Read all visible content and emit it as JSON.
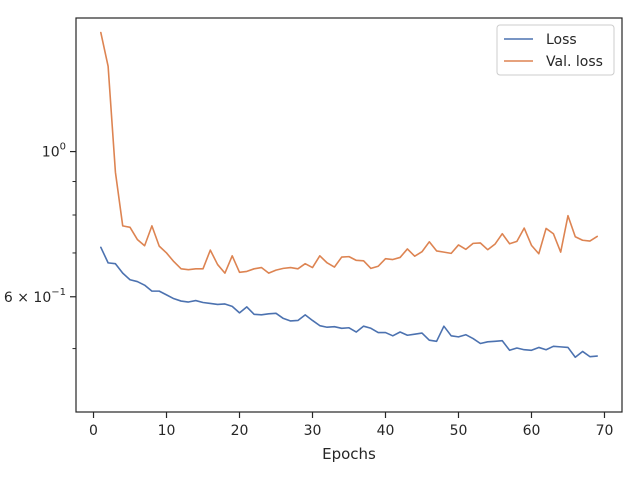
{
  "chart_data": {
    "type": "line",
    "title": "",
    "xlabel": "Epochs",
    "ylabel": "",
    "yscale": "log",
    "xlim": [
      -2.4,
      72.4
    ],
    "ylim": [
      0.4,
      1.6
    ],
    "xticks": [
      0,
      10,
      20,
      30,
      40,
      50,
      60,
      70
    ],
    "xtick_labels": [
      "0",
      "10",
      "20",
      "30",
      "40",
      "50",
      "60",
      "70"
    ],
    "yticks_major": [
      {
        "value": 1.0,
        "label": "10",
        "exp": "0"
      },
      {
        "value": 0.6,
        "label": "6 × 10",
        "exp": "−1"
      }
    ],
    "yticks_minor": [
      0.5,
      0.7,
      0.8,
      0.9
    ],
    "grid": false,
    "legend": "top-right",
    "colors": {
      "axes": "#262626",
      "loss": "#4c72b0",
      "val_loss": "#dd8452"
    },
    "series": [
      {
        "name": "Loss",
        "color": "#4c72b0",
        "x": [
          1,
          2,
          3,
          4,
          5,
          6,
          7,
          8,
          9,
          10,
          11,
          12,
          13,
          14,
          15,
          16,
          17,
          18,
          19,
          20,
          21,
          22,
          23,
          24,
          25,
          26,
          27,
          28,
          29,
          30,
          31,
          32,
          33,
          34,
          35,
          36,
          37,
          38,
          39,
          40,
          41,
          42,
          43,
          44,
          45,
          46,
          47,
          48,
          49,
          50,
          51,
          52,
          53,
          54,
          55,
          56,
          57,
          58,
          59,
          60,
          61,
          62,
          63,
          64,
          65,
          66,
          67,
          68,
          69
        ],
        "values": [
          0.714,
          0.676,
          0.674,
          0.652,
          0.637,
          0.633,
          0.625,
          0.612,
          0.612,
          0.604,
          0.596,
          0.591,
          0.589,
          0.592,
          0.588,
          0.586,
          0.584,
          0.585,
          0.58,
          0.567,
          0.579,
          0.564,
          0.563,
          0.565,
          0.566,
          0.556,
          0.551,
          0.552,
          0.563,
          0.552,
          0.542,
          0.539,
          0.54,
          0.537,
          0.538,
          0.53,
          0.541,
          0.537,
          0.529,
          0.529,
          0.523,
          0.53,
          0.524,
          0.526,
          0.528,
          0.515,
          0.513,
          0.541,
          0.523,
          0.521,
          0.525,
          0.518,
          0.509,
          0.512,
          0.513,
          0.514,
          0.497,
          0.501,
          0.498,
          0.497,
          0.502,
          0.498,
          0.504,
          0.503,
          0.502,
          0.485,
          0.495,
          0.486,
          0.487
        ]
      },
      {
        "name": "Val. loss",
        "color": "#dd8452",
        "x": [
          1,
          2,
          3,
          4,
          5,
          6,
          7,
          8,
          9,
          10,
          11,
          12,
          13,
          14,
          15,
          16,
          17,
          18,
          19,
          20,
          21,
          22,
          23,
          24,
          25,
          26,
          27,
          28,
          29,
          30,
          31,
          32,
          33,
          34,
          35,
          36,
          37,
          38,
          39,
          40,
          41,
          42,
          43,
          44,
          45,
          46,
          47,
          48,
          49,
          50,
          51,
          52,
          53,
          54,
          55,
          56,
          57,
          58,
          59,
          60,
          61,
          62,
          63,
          64,
          65,
          66,
          67,
          68,
          69
        ],
        "values": [
          1.52,
          1.35,
          0.93,
          0.77,
          0.766,
          0.734,
          0.718,
          0.77,
          0.717,
          0.7,
          0.679,
          0.662,
          0.66,
          0.662,
          0.662,
          0.707,
          0.672,
          0.652,
          0.693,
          0.654,
          0.656,
          0.662,
          0.665,
          0.652,
          0.659,
          0.663,
          0.665,
          0.662,
          0.674,
          0.665,
          0.693,
          0.676,
          0.666,
          0.69,
          0.691,
          0.682,
          0.681,
          0.663,
          0.668,
          0.686,
          0.684,
          0.689,
          0.71,
          0.692,
          0.703,
          0.728,
          0.705,
          0.702,
          0.699,
          0.72,
          0.709,
          0.724,
          0.725,
          0.708,
          0.722,
          0.749,
          0.723,
          0.729,
          0.764,
          0.719,
          0.698,
          0.763,
          0.749,
          0.702,
          0.798,
          0.741,
          0.732,
          0.73,
          0.742
        ]
      }
    ]
  }
}
